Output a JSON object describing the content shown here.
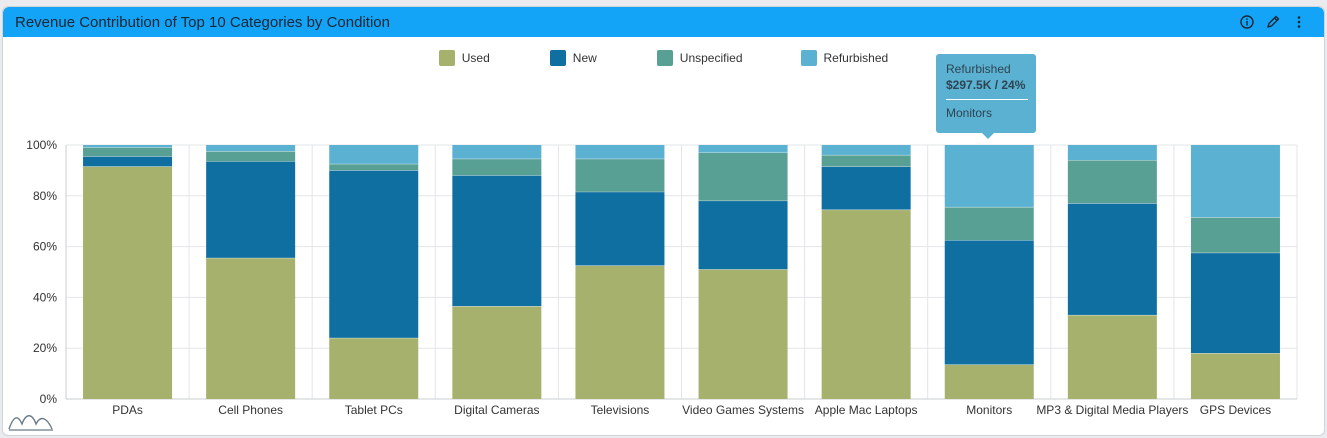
{
  "widget": {
    "title": "Revenue Contribution of Top 10 Categories by Condition",
    "icons": [
      "info-icon",
      "edit-pencil-icon",
      "more-vertical-icon"
    ]
  },
  "tooltip": {
    "series": "Refurbished",
    "value": "$297.5K / 24%",
    "category": "Monitors"
  },
  "chart_data": {
    "type": "bar",
    "stacked": "percent",
    "categories": [
      "PDAs",
      "Cell Phones",
      "Tablet PCs",
      "Digital Cameras",
      "Televisions",
      "Video Games Systems",
      "Apple Mac Laptops",
      "Monitors",
      "MP3 & Digital Media Players",
      "GPS Devices"
    ],
    "series": [
      {
        "name": "Used",
        "color": "#a5b16d",
        "values": [
          91.5,
          55.5,
          24,
          36.5,
          52.5,
          51,
          74.5,
          13.5,
          33,
          18
        ]
      },
      {
        "name": "New",
        "color": "#0e6fa0",
        "values": [
          4,
          38,
          66,
          51.5,
          29,
          27,
          17,
          49,
          44,
          39.5
        ]
      },
      {
        "name": "Unspecified",
        "color": "#57a093",
        "values": [
          3.5,
          4,
          2.5,
          6.5,
          13,
          19,
          4.5,
          13,
          17,
          14
        ]
      },
      {
        "name": "Refurbished",
        "color": "#5ab1d1",
        "values": [
          1,
          2.5,
          7.5,
          5.5,
          5.5,
          3,
          4,
          24.5,
          6,
          28.5
        ]
      }
    ],
    "ylim": [
      0,
      100
    ],
    "yticks": [
      "0%",
      "20%",
      "40%",
      "60%",
      "80%",
      "100%"
    ],
    "grid": true,
    "legend": "top-center"
  }
}
